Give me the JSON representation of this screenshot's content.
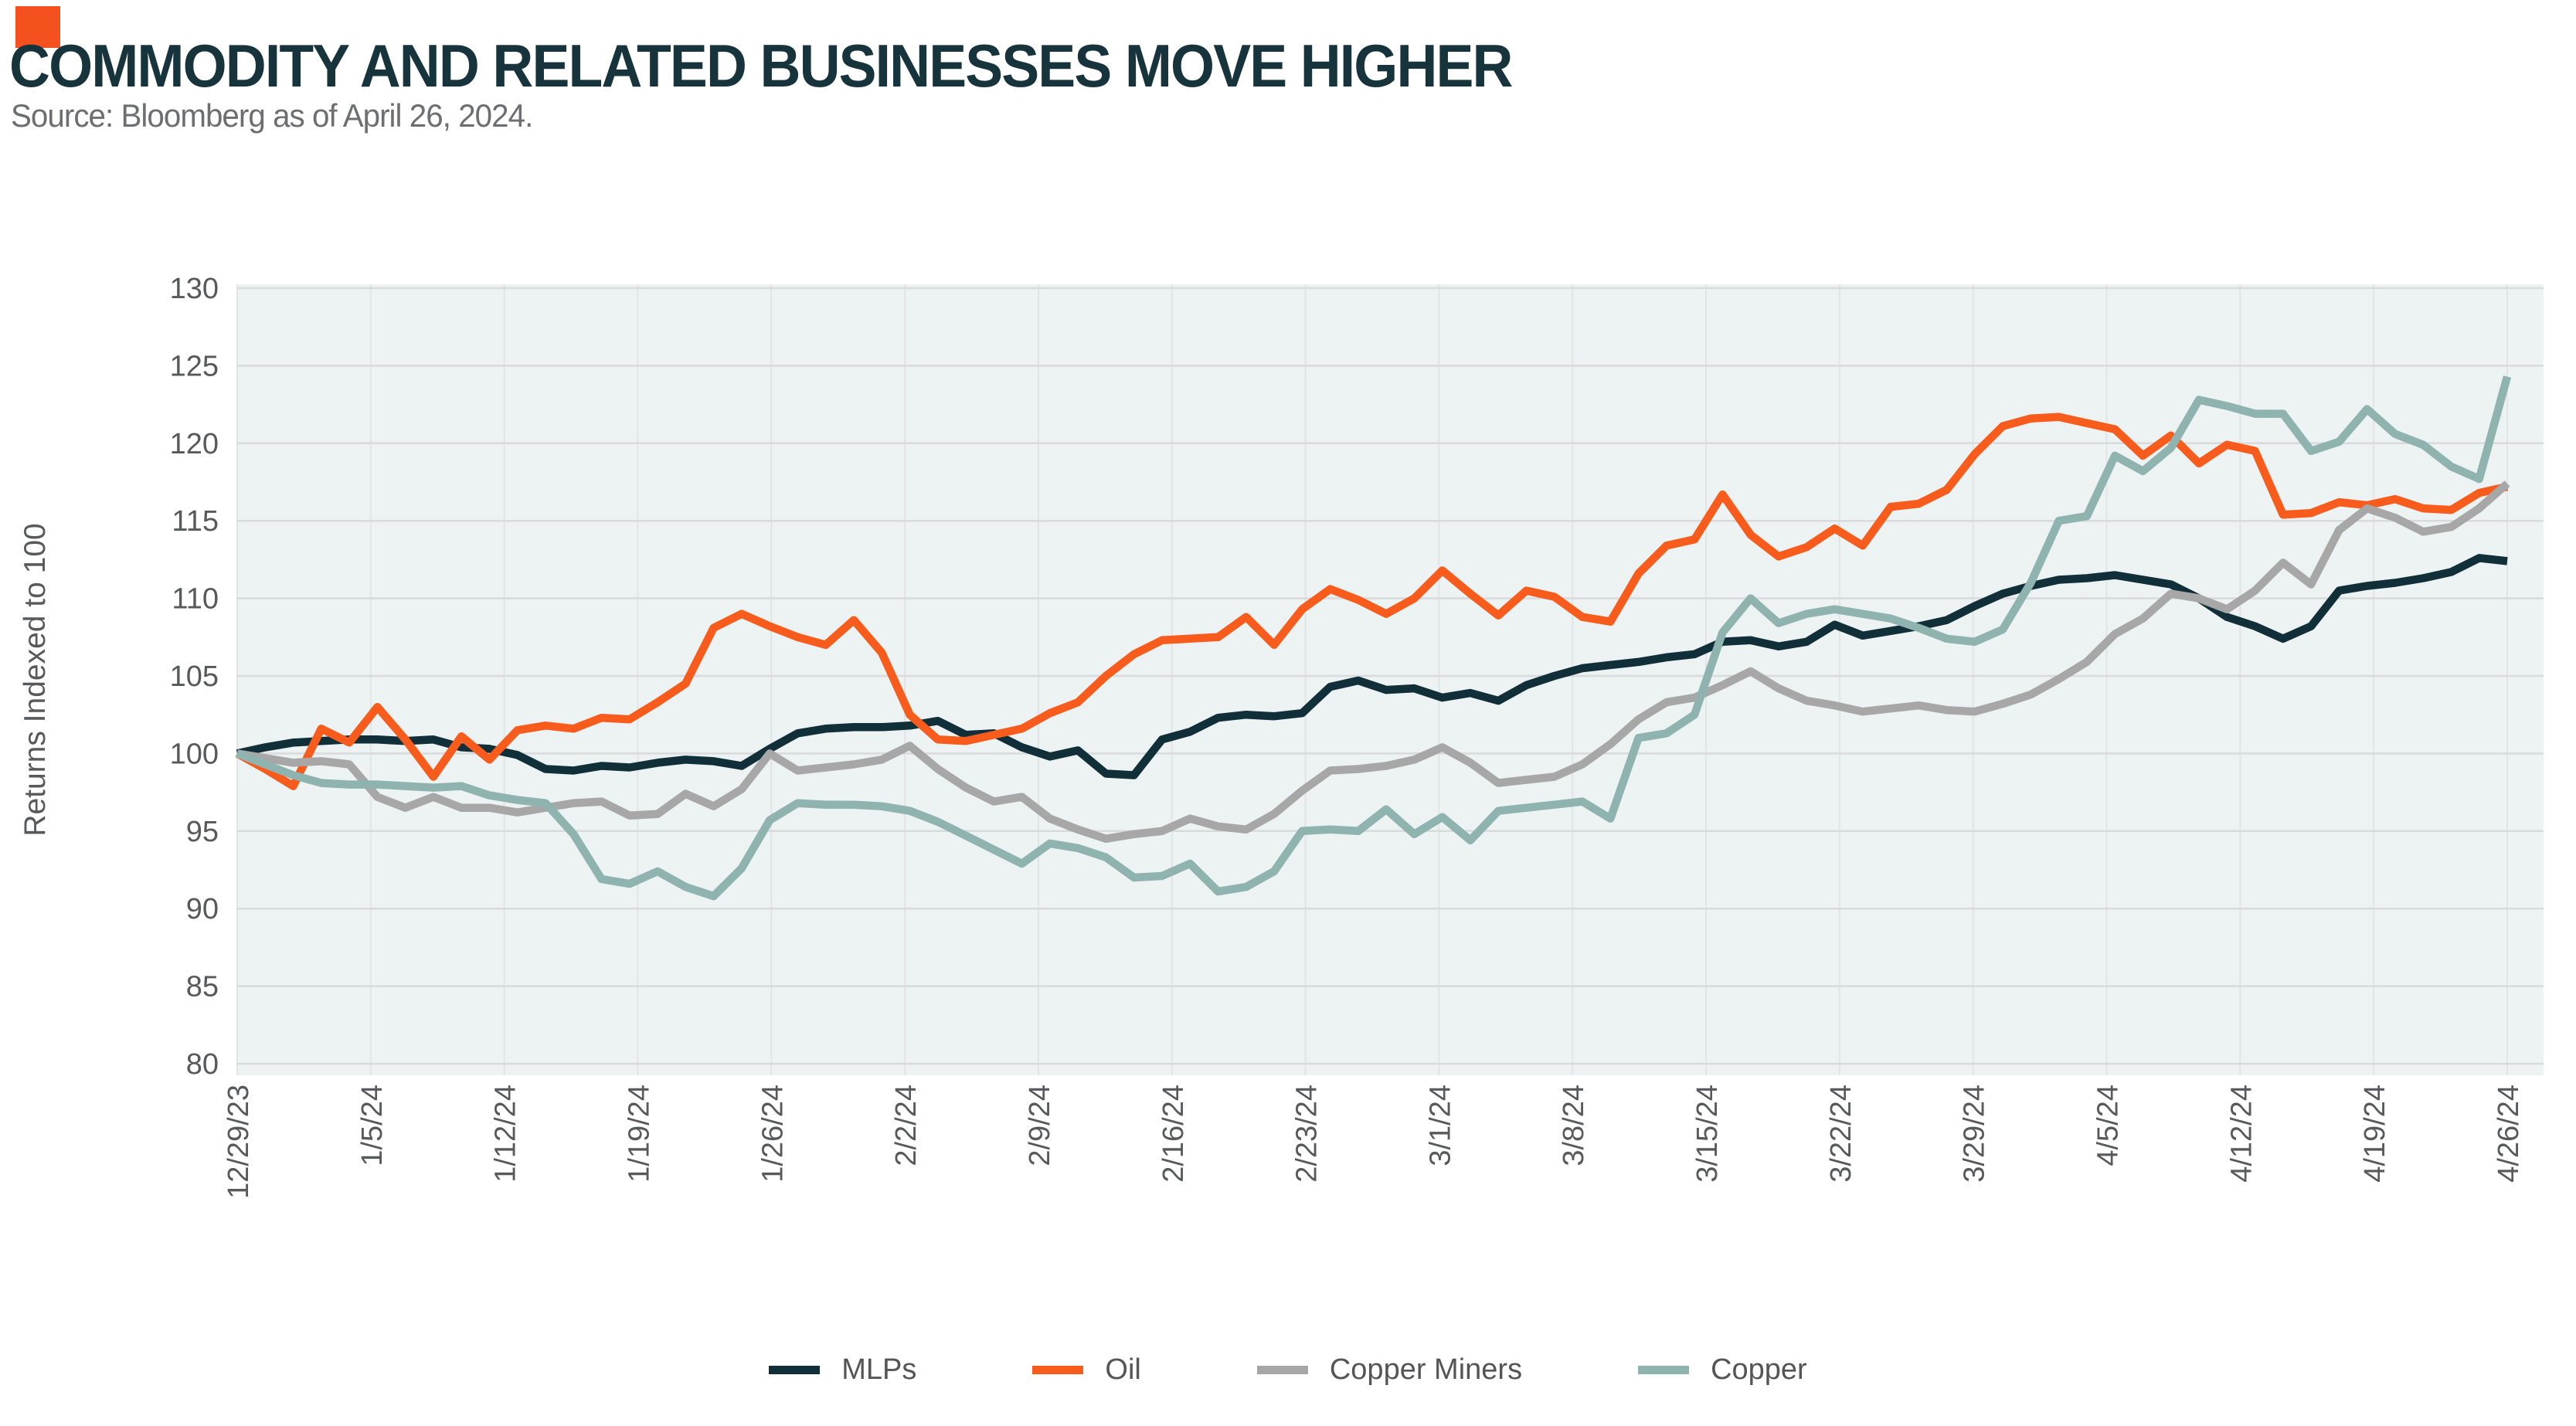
{
  "header": {
    "title": "COMMODITY AND RELATED BUSINESSES MOVE HIGHER",
    "source": "Source: Bloomberg as of April 26, 2024.",
    "accent_color": "#f4511e"
  },
  "chart_data": {
    "type": "line",
    "title": "Commodity and related businesses move higher",
    "xlabel": "",
    "ylabel": "Returns Indexed to 100",
    "ylim": [
      80,
      130
    ],
    "yticks": [
      80,
      85,
      90,
      95,
      100,
      105,
      110,
      115,
      120,
      125,
      130
    ],
    "grid": true,
    "legend_position": "bottom",
    "plot_bg": "#edf2f3",
    "gridline_color": "#d8dadb",
    "vgridline_color": "#e2e4e5",
    "tick_color": "#58595b",
    "x_axis_labels": [
      "12/29/23",
      "1/5/24",
      "1/12/24",
      "1/19/24",
      "1/26/24",
      "2/2/24",
      "2/9/24",
      "2/16/24",
      "2/23/24",
      "3/1/24",
      "3/8/24",
      "3/15/24",
      "3/22/24",
      "3/29/24",
      "4/5/24",
      "4/12/24",
      "4/19/24",
      "4/26/24"
    ],
    "x": [
      "12/29/23",
      "1/2/24",
      "1/3/24",
      "1/4/24",
      "1/5/24",
      "1/8/24",
      "1/9/24",
      "1/10/24",
      "1/11/24",
      "1/12/24",
      "1/16/24",
      "1/17/24",
      "1/18/24",
      "1/19/24",
      "1/22/24",
      "1/23/24",
      "1/24/24",
      "1/25/24",
      "1/26/24",
      "1/29/24",
      "1/30/24",
      "1/31/24",
      "2/1/24",
      "2/2/24",
      "2/5/24",
      "2/6/24",
      "2/7/24",
      "2/8/24",
      "2/9/24",
      "2/12/24",
      "2/13/24",
      "2/14/24",
      "2/15/24",
      "2/16/24",
      "2/20/24",
      "2/21/24",
      "2/22/24",
      "2/23/24",
      "2/26/24",
      "2/27/24",
      "2/28/24",
      "2/29/24",
      "3/1/24",
      "3/4/24",
      "3/5/24",
      "3/6/24",
      "3/7/24",
      "3/8/24",
      "3/11/24",
      "3/12/24",
      "3/13/24",
      "3/14/24",
      "3/15/24",
      "3/18/24",
      "3/19/24",
      "3/20/24",
      "3/21/24",
      "3/22/24",
      "3/25/24",
      "3/26/24",
      "3/27/24",
      "3/28/24",
      "4/1/24",
      "4/2/24",
      "4/3/24",
      "4/4/24",
      "4/5/24",
      "4/8/24",
      "4/9/24",
      "4/10/24",
      "4/11/24",
      "4/12/24",
      "4/15/24",
      "4/16/24",
      "4/17/24",
      "4/18/24",
      "4/19/24",
      "4/22/24",
      "4/23/24",
      "4/24/24",
      "4/25/24",
      "4/26/24"
    ],
    "series": [
      {
        "name": "MLPs",
        "color": "#112f38",
        "values": [
          100.0,
          100.4,
          100.7,
          100.8,
          100.9,
          100.9,
          100.8,
          100.9,
          100.4,
          100.3,
          99.9,
          99.0,
          98.9,
          99.2,
          99.1,
          99.4,
          99.6,
          99.5,
          99.2,
          100.3,
          101.3,
          101.6,
          101.7,
          101.7,
          101.8,
          102.1,
          101.2,
          101.3,
          100.4,
          99.8,
          100.2,
          98.7,
          98.6,
          100.9,
          101.4,
          102.3,
          102.5,
          102.4,
          102.6,
          104.3,
          104.7,
          104.1,
          104.2,
          103.6,
          103.9,
          103.4,
          104.4,
          105.0,
          105.5,
          105.7,
          105.9,
          106.2,
          106.4,
          107.2,
          107.3,
          106.9,
          107.2,
          108.3,
          107.6,
          107.9,
          108.2,
          108.6,
          109.5,
          110.3,
          110.8,
          111.2,
          111.3,
          111.5,
          111.2,
          110.9,
          110.0,
          108.8,
          108.2,
          107.4,
          108.2,
          110.5,
          110.8,
          111.0,
          111.3,
          111.7,
          112.6,
          112.4
        ]
      },
      {
        "name": "Oil",
        "color": "#f75c1c",
        "values": [
          100.0,
          99.0,
          97.9,
          101.6,
          100.7,
          103.0,
          100.9,
          98.5,
          101.1,
          99.6,
          101.5,
          101.8,
          101.6,
          102.3,
          102.2,
          103.3,
          104.5,
          108.1,
          109.0,
          108.2,
          107.5,
          107.0,
          108.6,
          106.5,
          102.5,
          100.9,
          100.8,
          101.2,
          101.6,
          102.6,
          103.3,
          105.0,
          106.4,
          107.3,
          107.4,
          107.5,
          108.8,
          107.0,
          109.3,
          110.6,
          109.9,
          109.0,
          110.0,
          111.8,
          110.3,
          108.9,
          110.5,
          110.1,
          108.8,
          108.5,
          111.6,
          113.4,
          113.8,
          116.7,
          114.1,
          112.7,
          113.3,
          114.5,
          113.4,
          115.9,
          116.1,
          117.0,
          119.3,
          121.1,
          121.6,
          121.7,
          121.3,
          120.9,
          119.2,
          120.5,
          118.7,
          119.9,
          119.5,
          115.4,
          115.5,
          116.2,
          116.0,
          116.4,
          115.8,
          115.7,
          116.8,
          117.2
        ]
      },
      {
        "name": "Copper Miners",
        "color": "#a7a7a7",
        "values": [
          100.0,
          99.7,
          99.4,
          99.5,
          99.3,
          97.2,
          96.5,
          97.2,
          96.5,
          96.5,
          96.2,
          96.5,
          96.8,
          96.9,
          96.0,
          96.1,
          97.4,
          96.6,
          97.7,
          100.0,
          98.9,
          99.1,
          99.3,
          99.6,
          100.5,
          99.0,
          97.8,
          96.9,
          97.2,
          95.8,
          95.1,
          94.5,
          94.8,
          95.0,
          95.8,
          95.3,
          95.1,
          96.1,
          97.6,
          98.9,
          99.0,
          99.2,
          99.6,
          100.4,
          99.4,
          98.1,
          98.3,
          98.5,
          99.3,
          100.6,
          102.2,
          103.3,
          103.6,
          104.4,
          105.3,
          104.2,
          103.4,
          103.1,
          102.7,
          102.9,
          103.1,
          102.8,
          102.7,
          103.2,
          103.8,
          104.8,
          105.9,
          107.7,
          108.7,
          110.3,
          110.0,
          109.3,
          110.5,
          112.3,
          110.9,
          114.4,
          115.8,
          115.2,
          114.3,
          114.6,
          115.8,
          117.4
        ]
      },
      {
        "name": "Copper",
        "color": "#8fb3af",
        "values": [
          100.0,
          99.3,
          98.6,
          98.1,
          98.0,
          98.0,
          97.9,
          97.8,
          97.9,
          97.3,
          97.0,
          96.8,
          94.8,
          91.9,
          91.6,
          92.4,
          91.4,
          90.8,
          92.6,
          95.7,
          96.8,
          96.7,
          96.7,
          96.6,
          96.3,
          95.6,
          94.7,
          93.8,
          92.9,
          94.2,
          93.9,
          93.3,
          92.0,
          92.1,
          92.9,
          91.1,
          91.4,
          92.4,
          95.0,
          95.1,
          95.0,
          96.4,
          94.8,
          95.9,
          94.4,
          96.3,
          96.5,
          96.7,
          96.9,
          95.8,
          101.0,
          101.3,
          102.5,
          107.8,
          110.0,
          108.4,
          109.0,
          109.3,
          109.0,
          108.7,
          108.1,
          107.4,
          107.2,
          108.0,
          111.0,
          115.0,
          115.3,
          119.2,
          118.2,
          119.7,
          122.8,
          122.4,
          121.9,
          121.9,
          119.5,
          120.1,
          122.2,
          120.6,
          119.9,
          118.5,
          117.7,
          124.3
        ]
      }
    ]
  }
}
